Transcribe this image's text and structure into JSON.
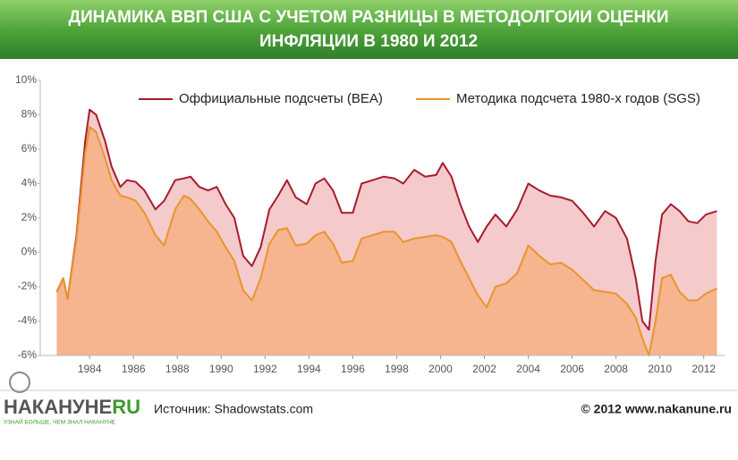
{
  "chart_data": {
    "type": "area-line",
    "title": [
      "ДИНАМИКА ВВП США С УЧЕТОМ РАЗНИЦЫ В МЕТОДОЛГОИИ ОЦЕНКИ",
      "ИНФЛЯЦИИ В 1980 И 2012"
    ],
    "x": [
      1982.5,
      1982.8,
      1983.0,
      1983.4,
      1983.8,
      1984.0,
      1984.3,
      1984.7,
      1985.0,
      1985.4,
      1985.7,
      1986.1,
      1986.5,
      1987.0,
      1987.4,
      1987.9,
      1988.3,
      1988.6,
      1989.0,
      1989.4,
      1989.8,
      1990.2,
      1990.6,
      1991.0,
      1991.4,
      1991.8,
      1992.2,
      1992.6,
      1993.0,
      1993.4,
      1993.9,
      1994.3,
      1994.7,
      1995.1,
      1995.5,
      1996.0,
      1996.4,
      1996.9,
      1997.4,
      1997.9,
      1998.3,
      1998.8,
      1999.3,
      1999.8,
      2000.1,
      2000.5,
      2000.9,
      2001.3,
      2001.7,
      2002.1,
      2002.5,
      2003.0,
      2003.5,
      2004.0,
      2004.5,
      2005.0,
      2005.5,
      2006.0,
      2006.5,
      2007.0,
      2007.5,
      2008.0,
      2008.5,
      2008.9,
      2009.2,
      2009.5,
      2009.8,
      2010.1,
      2010.5,
      2010.9,
      2011.3,
      2011.7,
      2012.1,
      2012.6
    ],
    "series": [
      {
        "name": "Оффициальные подсчеты (BEA)",
        "color": "#a51d2d",
        "fill": "#f4caca",
        "values": [
          -2.3,
          -1.5,
          -2.7,
          1.0,
          6.5,
          8.3,
          8.0,
          6.5,
          5.0,
          3.8,
          4.2,
          4.1,
          3.6,
          2.5,
          3.0,
          4.2,
          4.3,
          4.4,
          3.8,
          3.6,
          3.8,
          2.8,
          2.0,
          -0.2,
          -0.8,
          0.3,
          2.5,
          3.3,
          4.2,
          3.2,
          2.8,
          4.0,
          4.3,
          3.6,
          2.3,
          2.3,
          4.0,
          4.2,
          4.4,
          4.3,
          4.0,
          4.8,
          4.4,
          4.5,
          5.2,
          4.4,
          2.8,
          1.5,
          0.6,
          1.5,
          2.2,
          1.5,
          2.5,
          4.0,
          3.6,
          3.3,
          3.2,
          3.0,
          2.3,
          1.5,
          2.4,
          2.0,
          0.8,
          -1.5,
          -4.0,
          -4.5,
          -0.5,
          2.2,
          2.8,
          2.4,
          1.8,
          1.7,
          2.2,
          2.4
        ]
      },
      {
        "name": "Методика подсчета 1980-х годов (SGS)",
        "color": "#e8952c",
        "fill": "#f6b48f",
        "values": [
          -2.3,
          -1.5,
          -2.7,
          0.8,
          5.8,
          7.3,
          7.0,
          5.5,
          4.2,
          3.3,
          3.2,
          3.0,
          2.3,
          1.0,
          0.4,
          2.5,
          3.3,
          3.1,
          2.5,
          1.8,
          1.2,
          0.3,
          -0.5,
          -2.2,
          -2.8,
          -1.5,
          0.5,
          1.3,
          1.4,
          0.4,
          0.5,
          1.0,
          1.2,
          0.5,
          -0.6,
          -0.5,
          0.8,
          1.0,
          1.2,
          1.2,
          0.6,
          0.8,
          0.9,
          1.0,
          0.9,
          0.6,
          -0.5,
          -1.5,
          -2.5,
          -3.2,
          -2.0,
          -1.8,
          -1.2,
          0.4,
          -0.2,
          -0.7,
          -0.6,
          -1.0,
          -1.6,
          -2.2,
          -2.3,
          -2.4,
          -3.0,
          -3.8,
          -5.0,
          -6.0,
          -4.0,
          -1.5,
          -1.3,
          -2.3,
          -2.8,
          -2.8,
          -2.4,
          -2.1
        ]
      }
    ],
    "xlim": [
      1981.75,
      2012.95
    ],
    "xticks": [
      1984,
      1986,
      1988,
      1990,
      1992,
      1994,
      1996,
      1998,
      2000,
      2002,
      2004,
      2006,
      2008,
      2010,
      2012
    ],
    "ylim": [
      -6,
      10
    ],
    "yticks": [
      {
        "value": -6,
        "label": "-6%"
      },
      {
        "value": -4,
        "label": "-4%"
      },
      {
        "value": -2,
        "label": "-2%"
      },
      {
        "value": 0,
        "label": "0%"
      },
      {
        "value": 2,
        "label": "2%"
      },
      {
        "value": 4,
        "label": "4%"
      },
      {
        "value": 6,
        "label": "6%"
      },
      {
        "value": 8,
        "label": "8%"
      },
      {
        "value": 10,
        "label": "10%"
      }
    ],
    "grid": false,
    "legend": "top"
  },
  "footer": {
    "logo": [
      "НАКАНУНЕ",
      "RU"
    ],
    "tagline": "УЗНАЙ БОЛЬШЕ, ЧЕМ ЗНАЛ НАКАНУНЕ",
    "source": "Источник:  Shadowstats.com",
    "copyright": "© 2012 www.nakanune.ru"
  }
}
